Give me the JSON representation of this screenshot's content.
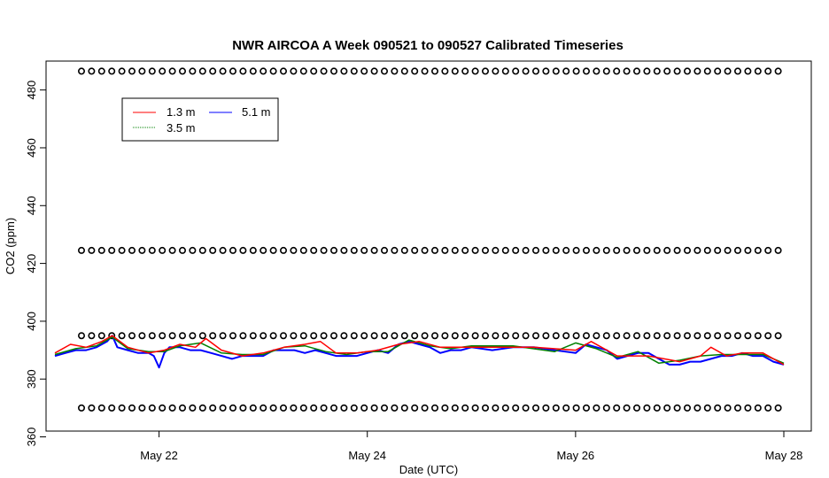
{
  "chart_data": {
    "type": "line",
    "title": "NWR AIRCOA A  Week 090521 to 090527  Calibrated Timeseries",
    "xlabel": "Date (UTC)",
    "ylabel": "CO2 (ppm)",
    "xlim": [
      "2009-05-21T00:00",
      "2009-05-28T00:00"
    ],
    "ylim": [
      362,
      490
    ],
    "x_ticks": [
      {
        "label": "May 22",
        "value": "2009-05-22"
      },
      {
        "label": "May 24",
        "value": "2009-05-24"
      },
      {
        "label": "May 26",
        "value": "2009-05-26"
      },
      {
        "label": "May 28",
        "value": "2009-05-28"
      }
    ],
    "y_ticks": [
      360,
      380,
      400,
      420,
      440,
      460,
      480
    ],
    "legend": {
      "position": "top-left",
      "entries": [
        {
          "label": "1.3 m",
          "color": "#ff0000"
        },
        {
          "label": "5.1 m",
          "color": "#0000ff"
        },
        {
          "label": "3.5 m",
          "color": "#008000"
        }
      ]
    },
    "series": [
      {
        "name": "5.1 m",
        "color": "#0000ff",
        "x": [
          21.0,
          21.1,
          21.2,
          21.3,
          21.4,
          21.5,
          21.55,
          21.6,
          21.7,
          21.8,
          21.9,
          21.95,
          22.0,
          22.05,
          22.1,
          22.2,
          22.3,
          22.4,
          22.5,
          22.6,
          22.7,
          22.8,
          22.9,
          23.0,
          23.1,
          23.2,
          23.3,
          23.4,
          23.5,
          23.6,
          23.7,
          23.8,
          23.9,
          24.0,
          24.1,
          24.2,
          24.3,
          24.4,
          24.5,
          24.6,
          24.7,
          24.8,
          24.9,
          25.0,
          25.2,
          25.4,
          25.6,
          25.8,
          26.0,
          26.1,
          26.2,
          26.3,
          26.4,
          26.5,
          26.6,
          26.7,
          26.8,
          26.9,
          27.0,
          27.1,
          27.2,
          27.3,
          27.4,
          27.5,
          27.6,
          27.7,
          27.8,
          27.9,
          28.0
        ],
        "values": [
          388,
          389,
          390,
          390,
          391,
          393,
          395,
          391,
          390,
          389,
          389,
          388,
          384,
          389,
          391,
          391,
          390,
          390,
          389,
          388,
          387,
          388,
          388,
          388,
          390,
          390,
          390,
          389,
          390,
          389,
          388,
          388,
          388,
          389,
          390,
          389,
          392,
          393,
          392,
          391,
          389,
          390,
          390,
          391,
          390,
          391,
          391,
          390,
          389,
          392,
          391,
          390,
          387,
          388,
          389,
          389,
          387,
          385,
          385,
          386,
          386,
          387,
          388,
          388,
          389,
          388,
          388,
          386,
          385
        ]
      },
      {
        "name": "3.5 m",
        "color": "#008000",
        "x": [
          21.0,
          21.2,
          21.4,
          21.55,
          21.7,
          21.9,
          22.05,
          22.2,
          22.4,
          22.6,
          22.8,
          23.0,
          23.2,
          23.4,
          23.6,
          23.8,
          24.0,
          24.2,
          24.4,
          24.6,
          24.8,
          25.0,
          25.4,
          25.8,
          26.0,
          26.2,
          26.4,
          26.6,
          26.8,
          27.0,
          27.2,
          27.4,
          27.6,
          27.8,
          28.0
        ],
        "values": [
          388.5,
          390.5,
          391.5,
          394.5,
          390.5,
          389.5,
          389.5,
          391.5,
          392.5,
          389,
          388.5,
          388.5,
          391,
          391.5,
          389.5,
          388.5,
          389.5,
          389.5,
          393.5,
          391.5,
          390.5,
          391.5,
          391.5,
          389.5,
          392.5,
          390.5,
          387.5,
          389.5,
          385.5,
          386.5,
          388,
          388.5,
          388.5,
          388.5,
          385.5
        ]
      },
      {
        "name": "1.3 m",
        "color": "#ff0000",
        "x": [
          21.0,
          21.15,
          21.3,
          21.45,
          21.55,
          21.7,
          21.9,
          22.05,
          22.2,
          22.35,
          22.45,
          22.6,
          22.8,
          23.0,
          23.2,
          23.4,
          23.55,
          23.7,
          23.9,
          24.1,
          24.3,
          24.5,
          24.7,
          24.9,
          25.2,
          25.6,
          26.0,
          26.15,
          26.4,
          26.7,
          27.0,
          27.2,
          27.3,
          27.45,
          27.6,
          27.8,
          28.0
        ],
        "values": [
          389,
          392,
          391,
          393,
          395,
          391,
          389,
          390,
          392,
          391,
          394,
          390,
          388,
          389,
          391,
          392,
          393,
          389,
          389,
          390,
          392,
          393,
          391,
          391,
          391,
          391,
          390,
          393,
          388,
          388,
          386,
          388,
          391,
          388,
          389,
          389,
          385
        ]
      }
    ],
    "calibration_markers": {
      "symbol": "o",
      "color": "#000000",
      "levels": [
        486.5,
        424.5,
        395,
        370
      ]
    }
  }
}
